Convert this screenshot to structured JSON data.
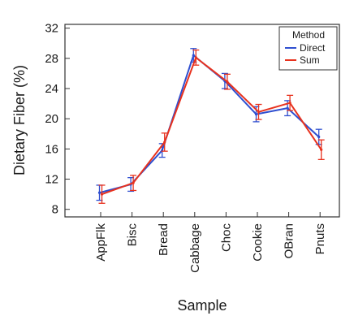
{
  "chart_data": {
    "type": "line",
    "xlabel": "Sample",
    "ylabel": "Dietary Fiber (%)",
    "categories": [
      "AppFlk",
      "Bisc",
      "Bread",
      "Cabbage",
      "Choc",
      "Cookie",
      "OBran",
      "Pnuts"
    ],
    "ylim": [
      7,
      32.5
    ],
    "yticks": [
      "8",
      "12",
      "16",
      "20",
      "24",
      "28",
      "32"
    ],
    "series": [
      {
        "name": "Direct",
        "color": "#2f4fd0",
        "values": [
          10.2,
          11.3,
          15.8,
          28.4,
          25.0,
          20.6,
          21.4,
          17.6
        ],
        "err": [
          1.0,
          0.9,
          0.9,
          0.9,
          1.0,
          1.0,
          1.0,
          1.0
        ]
      },
      {
        "name": "Sum",
        "color": "#e8321e",
        "values": [
          10.0,
          11.5,
          16.9,
          28.1,
          24.9,
          20.9,
          22.1,
          15.9
        ],
        "err": [
          1.2,
          1.0,
          1.2,
          1.0,
          1.0,
          1.0,
          1.0,
          1.3
        ]
      }
    ],
    "legend": {
      "title": "Method",
      "placement": "top-right"
    },
    "grid": false
  }
}
